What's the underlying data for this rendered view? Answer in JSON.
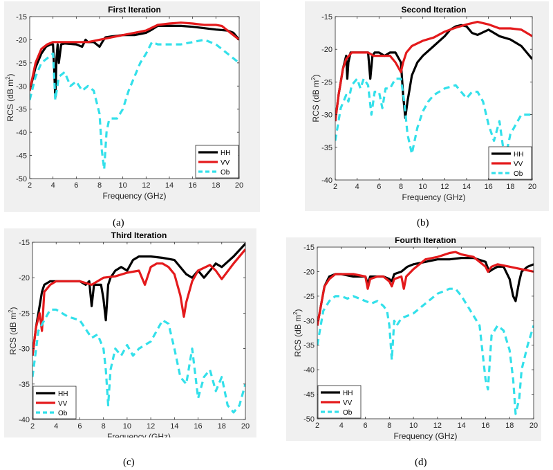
{
  "colors": {
    "background": "#f0f0f0",
    "plot_bg": "#ffffff",
    "hh": "#000000",
    "vv": "#e41a1c",
    "ob": "#33e0ea"
  },
  "captions": [
    "(a)",
    "(b)",
    "(c)",
    "(d)"
  ],
  "chart_data": [
    {
      "type": "line",
      "title": "First Iteration",
      "xlabel": "Frequency (GHz)",
      "ylabel": "RCS (dB m",
      "ylabel_sup": "2",
      "ylabel_end": ")",
      "xlim": [
        2,
        20
      ],
      "ylim": [
        -50,
        -15
      ],
      "xticks": [
        2,
        4,
        6,
        8,
        10,
        12,
        14,
        16,
        18,
        20
      ],
      "yticks": [
        -15,
        -20,
        -25,
        -30,
        -35,
        -40,
        -45,
        -50
      ],
      "legend": {
        "position": "bottom-right",
        "labels": [
          "HH",
          "VV",
          "Ob"
        ]
      },
      "series": [
        {
          "name": "HH",
          "x": [
            2,
            2.5,
            3,
            3.4,
            3.8,
            4.0,
            4.1,
            4.2,
            4.3,
            4.4,
            4.5,
            4.7,
            5,
            6,
            6.5,
            6.8,
            7,
            7.5,
            8,
            8.3,
            8.5,
            9,
            10,
            11,
            12,
            12.5,
            13,
            14,
            15,
            16,
            17,
            18,
            19,
            19.5,
            20
          ],
          "y": [
            -31,
            -26,
            -23,
            -21.5,
            -21,
            -21,
            -26,
            -32.5,
            -24,
            -21,
            -25,
            -21,
            -20.8,
            -21,
            -21.5,
            -20,
            -20.5,
            -20.5,
            -21.5,
            -20.2,
            -19.5,
            -19.3,
            -19,
            -19,
            -18.5,
            -17.8,
            -17,
            -17,
            -17,
            -17.2,
            -17.5,
            -17.8,
            -18,
            -18.5,
            -20
          ]
        },
        {
          "name": "VV",
          "x": [
            2,
            2.5,
            3,
            3.5,
            4,
            5,
            6,
            7,
            8,
            9,
            10,
            11,
            12,
            13,
            14,
            15,
            16,
            17,
            18,
            18.5,
            19,
            20
          ],
          "y": [
            -31,
            -25,
            -22,
            -21,
            -20.5,
            -20.5,
            -20.5,
            -20.5,
            -20,
            -19.5,
            -19,
            -18.5,
            -18,
            -16.8,
            -16.5,
            -16.3,
            -16.5,
            -16.8,
            -16.8,
            -17,
            -18,
            -20
          ]
        },
        {
          "name": "Ob",
          "x": [
            2,
            2.5,
            3,
            3.5,
            4,
            4.2,
            4.5,
            5,
            5.5,
            6,
            6.5,
            7,
            7.5,
            8,
            8.2,
            8.4,
            8.6,
            8.8,
            9,
            9.5,
            10,
            10.5,
            11,
            11.5,
            12,
            12.5,
            13,
            14,
            15,
            16,
            17,
            18,
            19,
            20
          ],
          "y": [
            -33,
            -28,
            -25,
            -24,
            -23,
            -33,
            -28,
            -27,
            -30,
            -29,
            -31,
            -30,
            -31,
            -36,
            -44,
            -48,
            -40,
            -37.5,
            -37,
            -37,
            -35,
            -31,
            -28,
            -25,
            -23,
            -20.5,
            -21,
            -21,
            -21,
            -20.5,
            -20,
            -21,
            -23,
            -25
          ]
        }
      ]
    },
    {
      "type": "line",
      "title": "Second Iteration",
      "xlabel": "Frequency (GHz)",
      "ylabel": "RCS (dB m",
      "ylabel_sup": "2",
      "ylabel_end": ")",
      "xlim": [
        2,
        20
      ],
      "ylim": [
        -40,
        -15
      ],
      "xticks": [
        2,
        4,
        6,
        8,
        10,
        12,
        14,
        16,
        18,
        20
      ],
      "yticks": [
        -15,
        -20,
        -25,
        -30,
        -35,
        -40
      ],
      "legend": {
        "position": "bottom-right",
        "labels": [
          "HH",
          "VV",
          "Ob"
        ]
      },
      "series": [
        {
          "name": "HH",
          "x": [
            2,
            2.3,
            2.7,
            3,
            3.1,
            3.2,
            3.4,
            4,
            5,
            5.2,
            5.4,
            5.6,
            6,
            6.5,
            7,
            7.5,
            8,
            8.2,
            8.4,
            8.6,
            8.8,
            9,
            9.5,
            10,
            11,
            12,
            12.5,
            13,
            13.5,
            14,
            14.5,
            15,
            16,
            17,
            18,
            19,
            20
          ],
          "y": [
            -31,
            -27,
            -23,
            -21,
            -24.5,
            -22,
            -20.5,
            -20.5,
            -20.5,
            -24.5,
            -21,
            -20.5,
            -20.5,
            -21,
            -20.5,
            -20.5,
            -22,
            -27,
            -30.5,
            -28,
            -26,
            -24,
            -22,
            -21,
            -19.5,
            -18,
            -17,
            -16.5,
            -16.3,
            -16.5,
            -17.5,
            -17.8,
            -17,
            -18,
            -18.5,
            -19.5,
            -21.5
          ]
        },
        {
          "name": "VV",
          "x": [
            2,
            2.3,
            2.7,
            3,
            3.5,
            4,
            5,
            5.5,
            6,
            7,
            7.5,
            8,
            8.2,
            8.5,
            9,
            10,
            11,
            12,
            13,
            14,
            15,
            16,
            17,
            18,
            19,
            20
          ],
          "y": [
            -31,
            -27,
            -23,
            -21.5,
            -20.5,
            -20.5,
            -20.5,
            -21,
            -21,
            -21,
            -22,
            -23.5,
            -22,
            -20.5,
            -19.5,
            -18.7,
            -18.2,
            -17.3,
            -16.7,
            -16.2,
            -15.8,
            -16.2,
            -16.8,
            -16.8,
            -17,
            -18
          ]
        },
        {
          "name": "Ob",
          "x": [
            2,
            2.5,
            3,
            3.2,
            3.5,
            4,
            4.3,
            4.6,
            5,
            5.3,
            5.6,
            6,
            6.3,
            6.6,
            7,
            7.5,
            8,
            8.3,
            8.6,
            9,
            9.5,
            10,
            10.5,
            11,
            12,
            13,
            13.5,
            14,
            14.5,
            15,
            15.5,
            16,
            16.5,
            17,
            17.5,
            18,
            19,
            20
          ],
          "y": [
            -34,
            -29,
            -27,
            -28,
            -25.5,
            -24.5,
            -26,
            -24.5,
            -25.5,
            -30,
            -26.5,
            -26.5,
            -29,
            -26,
            -26,
            -24.5,
            -24.5,
            -28,
            -33,
            -36,
            -32,
            -29.5,
            -28,
            -27,
            -26,
            -25.5,
            -26.5,
            -27.5,
            -26.5,
            -26.5,
            -28,
            -31.5,
            -34,
            -31,
            -37,
            -33,
            -30,
            -30
          ]
        }
      ]
    },
    {
      "type": "line",
      "title": "Third Iteration",
      "xlabel": "Frequency (GHz)",
      "ylabel": "RCS (dB m",
      "ylabel_sup": "2",
      "ylabel_end": ")",
      "xlim": [
        2,
        20
      ],
      "ylim": [
        -40,
        -15
      ],
      "xticks": [
        2,
        4,
        6,
        8,
        10,
        12,
        14,
        16,
        18,
        20
      ],
      "yticks": [
        -15,
        -20,
        -25,
        -30,
        -35,
        -40
      ],
      "legend": {
        "position": "bottom-left",
        "labels": [
          "HH",
          "VV",
          "Ob"
        ]
      },
      "series": [
        {
          "name": "HH",
          "x": [
            2,
            2.3,
            2.6,
            2.8,
            3,
            3.5,
            4,
            5,
            6,
            6.5,
            6.8,
            7,
            7.2,
            7.5,
            7.8,
            8,
            8.2,
            8.4,
            8.6,
            9,
            9.5,
            10,
            10.5,
            11,
            12,
            13,
            14,
            15,
            15.5,
            16,
            16.5,
            17,
            17.5,
            18,
            19,
            20
          ],
          "y": [
            -31,
            -27,
            -24,
            -22,
            -21,
            -20.5,
            -20.5,
            -20.5,
            -20.5,
            -21,
            -20.5,
            -24,
            -21,
            -21,
            -21,
            -23,
            -26,
            -21,
            -20,
            -19,
            -18.5,
            -19,
            -17.5,
            -17,
            -17,
            -17.2,
            -17.5,
            -19.5,
            -20,
            -19,
            -20,
            -19,
            -18,
            -18.5,
            -17,
            -15.2
          ]
        },
        {
          "name": "VV",
          "x": [
            2,
            2.3,
            2.6,
            2.8,
            3,
            3.5,
            4,
            5,
            6,
            7,
            8,
            9,
            10,
            11,
            11.5,
            12,
            12.5,
            13,
            13.5,
            14,
            14.5,
            14.8,
            15,
            15.5,
            16,
            17,
            17.5,
            18,
            19,
            20
          ],
          "y": [
            -31,
            -27,
            -25,
            -27.5,
            -22,
            -21,
            -20.5,
            -20.5,
            -20.5,
            -21,
            -20,
            -19.8,
            -19.3,
            -19,
            -21,
            -18.5,
            -18,
            -18,
            -18.5,
            -19.5,
            -22.5,
            -25.5,
            -23.5,
            -20.5,
            -19,
            -18.2,
            -19,
            -20.2,
            -18,
            -16
          ]
        },
        {
          "name": "Ob",
          "x": [
            2,
            2.5,
            3,
            3.5,
            4,
            5,
            6,
            7,
            7.5,
            8,
            8.2,
            8.4,
            8.6,
            9,
            9.5,
            10,
            10.5,
            11,
            12,
            13,
            13.5,
            14,
            14.5,
            15,
            15.5,
            16,
            16.5,
            17,
            17.5,
            18,
            18.5,
            19,
            19.5,
            20
          ],
          "y": [
            -34,
            -27.5,
            -26,
            -24.5,
            -24.5,
            -25.5,
            -26,
            -28.5,
            -28,
            -30,
            -33,
            -38,
            -33,
            -30,
            -31,
            -29.5,
            -31,
            -30,
            -29,
            -26,
            -26.5,
            -30,
            -34,
            -35,
            -30,
            -37,
            -34,
            -33,
            -36,
            -34,
            -38,
            -39,
            -38,
            -35
          ]
        }
      ]
    },
    {
      "type": "line",
      "title": "Fourth Iteration",
      "xlabel": "Frequency (GHz)",
      "ylabel": "RCS (dB m",
      "ylabel_sup": "2",
      "ylabel_end": ")",
      "xlim": [
        2,
        20
      ],
      "ylim": [
        -50,
        -15
      ],
      "xticks": [
        2,
        4,
        6,
        8,
        10,
        12,
        14,
        16,
        18,
        20
      ],
      "yticks": [
        -15,
        -20,
        -25,
        -30,
        -35,
        -40,
        -45,
        -50
      ],
      "legend": {
        "position": "bottom-left",
        "labels": [
          "HH",
          "VV",
          "Ob"
        ]
      },
      "series": [
        {
          "name": "HH",
          "x": [
            2,
            2.3,
            2.6,
            3,
            3.5,
            4,
            5,
            6,
            6.2,
            6.4,
            7,
            7.5,
            8,
            8.2,
            8.4,
            9,
            9.5,
            10,
            11,
            12,
            13,
            14,
            15,
            16,
            16.3,
            16.6,
            17,
            17.5,
            18,
            18.3,
            18.5,
            18.8,
            19,
            19.5,
            20
          ],
          "y": [
            -31,
            -27,
            -23,
            -21,
            -20.5,
            -20.5,
            -21,
            -21,
            -22.5,
            -21,
            -21,
            -21,
            -21.5,
            -22,
            -20.5,
            -20,
            -19,
            -18.5,
            -18,
            -17.5,
            -17.5,
            -17.2,
            -17.2,
            -18,
            -20,
            -19.5,
            -19,
            -19,
            -21.5,
            -25,
            -26,
            -22,
            -20,
            -19,
            -18.5
          ]
        },
        {
          "name": "VV",
          "x": [
            2,
            2.3,
            2.6,
            3,
            3.5,
            4,
            5,
            6,
            6.2,
            6.4,
            7,
            7.5,
            8,
            8.2,
            8.4,
            9,
            9.2,
            9.4,
            10,
            11,
            12,
            13,
            13.5,
            14,
            15,
            16,
            16.2,
            16.5,
            17,
            18,
            19,
            20
          ],
          "y": [
            -31,
            -27,
            -23,
            -21.5,
            -20.5,
            -20.5,
            -20.5,
            -21,
            -23.5,
            -21.5,
            -21,
            -21,
            -22,
            -23,
            -21.5,
            -21,
            -23.5,
            -21,
            -19.5,
            -17.5,
            -17,
            -16.2,
            -16,
            -16.5,
            -17,
            -19,
            -20,
            -19,
            -18.5,
            -19,
            -19.5,
            -20
          ]
        },
        {
          "name": "Ob",
          "x": [
            2,
            2.5,
            3,
            3.5,
            4,
            4.5,
            5,
            5.5,
            6,
            6.5,
            7,
            7.5,
            7.8,
            8,
            8.2,
            8.4,
            8.6,
            9,
            10,
            11,
            12,
            12.5,
            13,
            13.5,
            14,
            15,
            15.5,
            16,
            16.2,
            16.5,
            17,
            17.5,
            18,
            18.3,
            18.5,
            18.8,
            19,
            19.5,
            20
          ],
          "y": [
            -35,
            -28,
            -26,
            -25,
            -25,
            -25.5,
            -25,
            -25.5,
            -26,
            -26.5,
            -26,
            -27,
            -28,
            -31,
            -38,
            -30,
            -31,
            -29.5,
            -28.5,
            -26.5,
            -24.5,
            -24,
            -23.5,
            -23.5,
            -25,
            -29,
            -31,
            -42,
            -44,
            -33,
            -31,
            -32,
            -36,
            -42,
            -49,
            -46,
            -40,
            -35,
            -31
          ]
        }
      ]
    }
  ]
}
